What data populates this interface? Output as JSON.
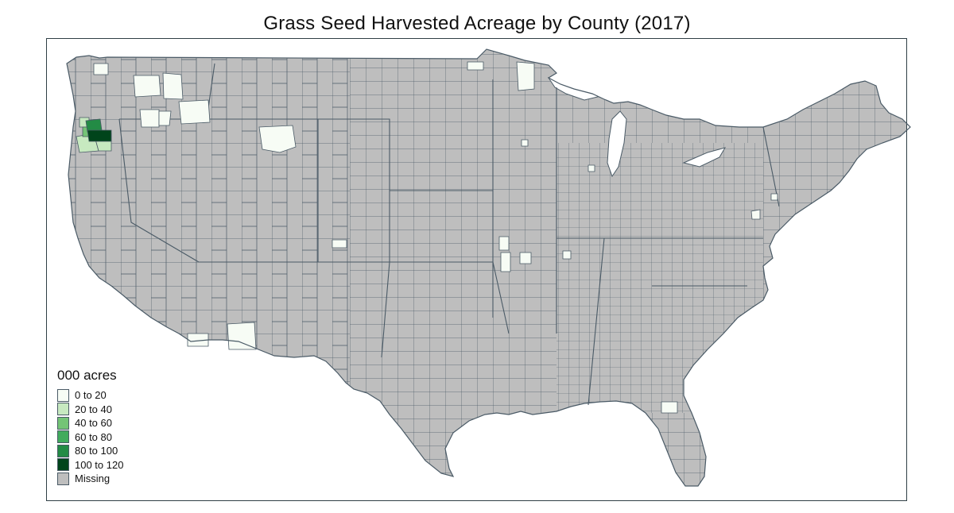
{
  "title": "Grass Seed Harvested Acreage by County (2017)",
  "legend": {
    "title": "000 acres",
    "items": [
      {
        "label": "0 to 20",
        "color": "#f7fcf5"
      },
      {
        "label": "20 to 40",
        "color": "#c7e9c0"
      },
      {
        "label": "40 to 60",
        "color": "#74c476"
      },
      {
        "label": "60 to 80",
        "color": "#41ab5d"
      },
      {
        "label": "80 to 100",
        "color": "#238b45"
      },
      {
        "label": "100 to 120",
        "color": "#00441b"
      },
      {
        "label": "Missing",
        "color": "#bebebe"
      }
    ]
  },
  "colors": {
    "missing_fill": "#bebebe",
    "county_border": "#4a5a66",
    "frame_border": "#2f3f45"
  },
  "map": {
    "region": "Contiguous United States",
    "unit_level": "county",
    "highlighted_regions": [
      {
        "area": "Willamette Valley, Oregon",
        "class": "100 to 120"
      },
      {
        "area": "Willamette Valley, Oregon",
        "class": "80 to 100"
      },
      {
        "area": "Willamette Valley, Oregon",
        "class": "20 to 40"
      },
      {
        "area": "Eastern Washington",
        "class": "0 to 20"
      },
      {
        "area": "Northern Idaho",
        "class": "0 to 20"
      },
      {
        "area": "Central Montana",
        "class": "0 to 20"
      },
      {
        "area": "Northwestern Minnesota",
        "class": "0 to 20"
      },
      {
        "area": "Eastern Kansas",
        "class": "0 to 20"
      },
      {
        "area": "Southern Arizona",
        "class": "0 to 20"
      },
      {
        "area": "Utah",
        "class": "0 to 20"
      },
      {
        "area": "Florida",
        "class": "0 to 20"
      },
      {
        "area": "Pennsylvania / New York",
        "class": "0 to 20"
      }
    ]
  }
}
